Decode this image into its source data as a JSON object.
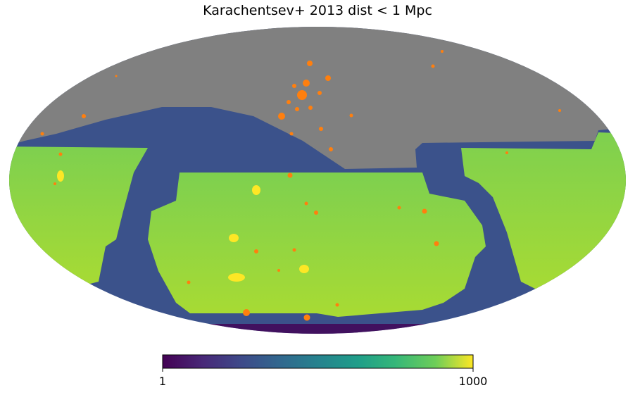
{
  "title": "Karachentsev+ 2013 dist < 1 Mpc",
  "colorbar": {
    "scale": "log",
    "lim": [
      1,
      1000
    ],
    "ticks": [
      1,
      1000
    ]
  }
}
